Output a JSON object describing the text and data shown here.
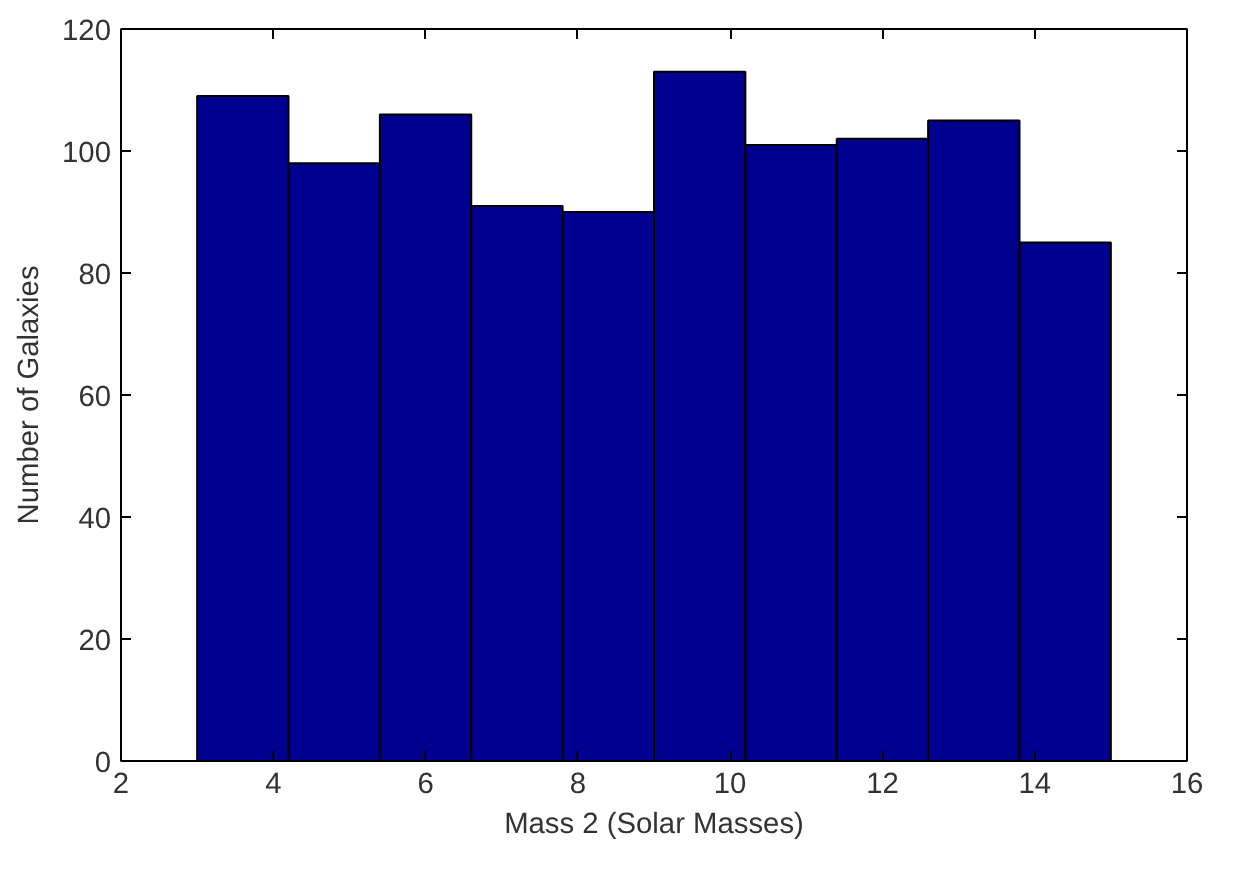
{
  "chart_data": {
    "type": "histogram",
    "xlabel": "Mass 2 (Solar Masses)",
    "ylabel": "Number of Galaxies",
    "bins": [
      3,
      4.2,
      5.4,
      6.6,
      7.8,
      9,
      10.2,
      11.4,
      12.6,
      13.8,
      15
    ],
    "values": [
      109,
      98,
      106,
      91,
      90,
      113,
      101,
      102,
      105,
      85
    ],
    "color": "#00008f",
    "xlim": [
      2,
      16
    ],
    "ylim": [
      0,
      120
    ],
    "xticks": [
      2,
      4,
      6,
      8,
      10,
      12,
      14,
      16
    ],
    "yticks": [
      0,
      20,
      40,
      60,
      80,
      100,
      120
    ],
    "grid": false
  }
}
